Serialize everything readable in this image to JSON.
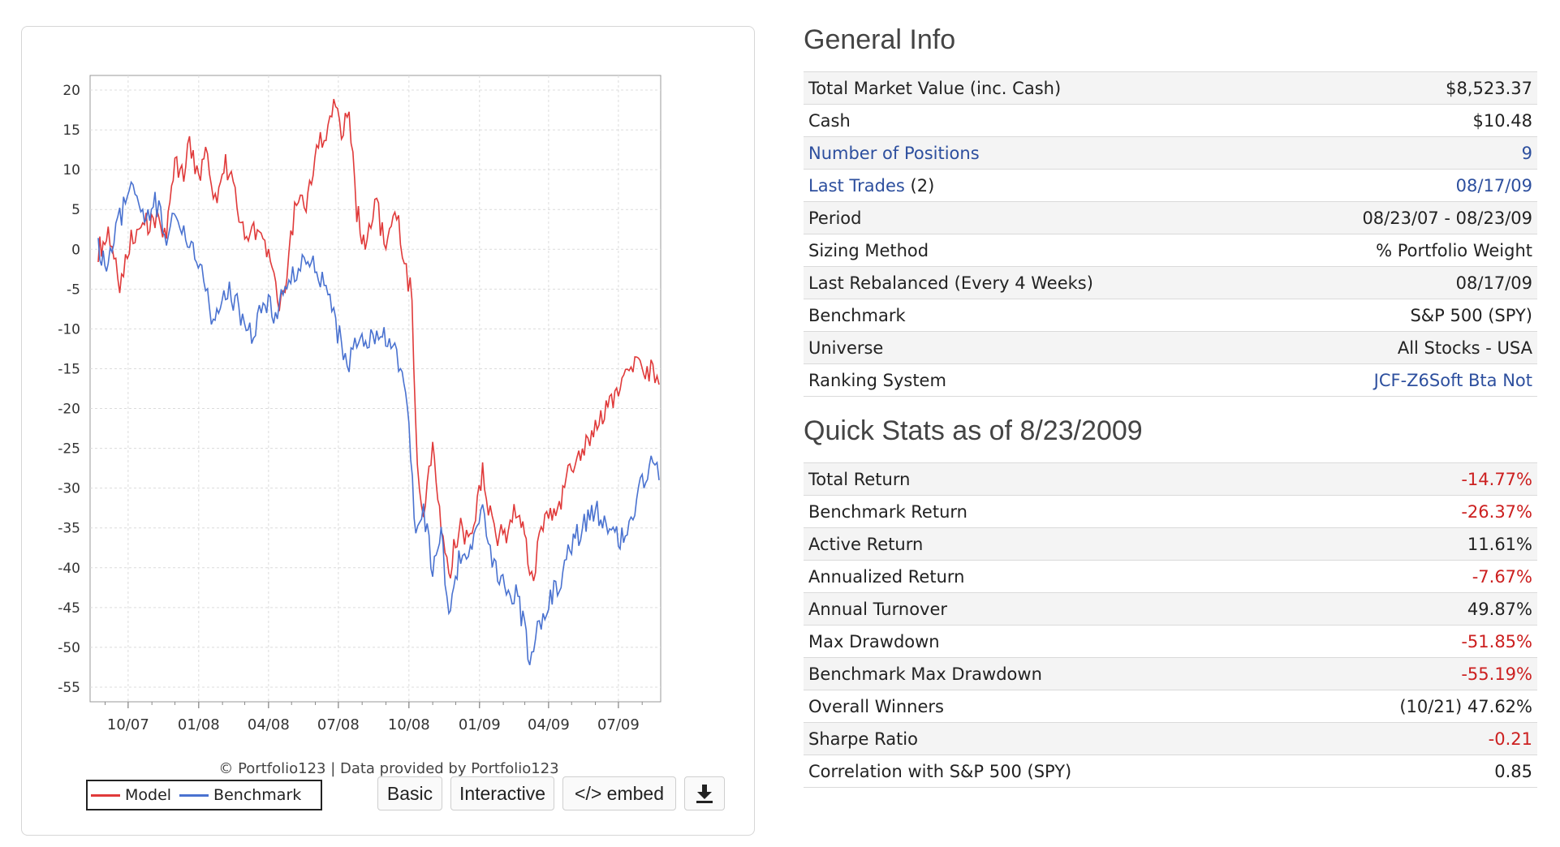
{
  "chart": {
    "copyright": "© Portfolio123 | Data provided by Portfolio123",
    "legend": [
      {
        "label": "Model",
        "color": "#e03a3a"
      },
      {
        "label": "Benchmark",
        "color": "#4a72d0"
      }
    ],
    "buttons": {
      "basic": "Basic",
      "interactive": "Interactive",
      "embed": "</> embed"
    },
    "download_icon": "download-icon"
  },
  "chart_data": {
    "type": "line",
    "x_ticks": [
      "10/07",
      "01/08",
      "04/08",
      "07/08",
      "10/08",
      "01/09",
      "04/09",
      "07/09"
    ],
    "y_ticks": [
      20,
      15,
      10,
      5,
      0,
      -5,
      -10,
      -15,
      -20,
      -25,
      -30,
      -35,
      -40,
      -45,
      -50,
      -55
    ],
    "ylim": [
      -55,
      20
    ],
    "x_range": [
      "2007-08-23",
      "2009-08-23"
    ],
    "grid": true,
    "legend_position": "bottom-left",
    "series": [
      {
        "name": "Model",
        "color": "#e03a3a",
        "points": [
          [
            "2007-08-23",
            0
          ],
          [
            "2007-09-05",
            1.5
          ],
          [
            "2007-09-20",
            -4.5
          ],
          [
            "2007-10-05",
            2
          ],
          [
            "2007-10-20",
            3
          ],
          [
            "2007-11-05",
            4
          ],
          [
            "2007-11-20",
            2
          ],
          [
            "2007-12-01",
            12
          ],
          [
            "2007-12-10",
            9
          ],
          [
            "2007-12-20",
            13
          ],
          [
            "2008-01-01",
            8
          ],
          [
            "2008-01-10",
            12
          ],
          [
            "2008-01-25",
            5
          ],
          [
            "2008-02-05",
            11
          ],
          [
            "2008-02-20",
            6
          ],
          [
            "2008-03-01",
            1
          ],
          [
            "2008-03-15",
            2
          ],
          [
            "2008-04-01",
            -1
          ],
          [
            "2008-04-15",
            -8
          ],
          [
            "2008-04-25",
            -3
          ],
          [
            "2008-05-05",
            5
          ],
          [
            "2008-05-20",
            6
          ],
          [
            "2008-06-05",
            14
          ],
          [
            "2008-06-15",
            13
          ],
          [
            "2008-06-25",
            19.5
          ],
          [
            "2008-07-05",
            15
          ],
          [
            "2008-07-15",
            17
          ],
          [
            "2008-07-25",
            5
          ],
          [
            "2008-08-05",
            0
          ],
          [
            "2008-08-20",
            6
          ],
          [
            "2008-09-01",
            -1
          ],
          [
            "2008-09-15",
            5
          ],
          [
            "2008-09-25",
            -2
          ],
          [
            "2008-10-05",
            -6
          ],
          [
            "2008-10-12",
            -28
          ],
          [
            "2008-10-20",
            -33
          ],
          [
            "2008-11-01",
            -25
          ],
          [
            "2008-11-12",
            -36
          ],
          [
            "2008-11-22",
            -41
          ],
          [
            "2008-12-05",
            -35
          ],
          [
            "2008-12-20",
            -36
          ],
          [
            "2009-01-05",
            -28
          ],
          [
            "2009-01-20",
            -36
          ],
          [
            "2009-02-05",
            -36
          ],
          [
            "2009-02-20",
            -32
          ],
          [
            "2009-03-05",
            -38
          ],
          [
            "2009-03-10",
            -42
          ],
          [
            "2009-03-20",
            -37
          ],
          [
            "2009-04-01",
            -33
          ],
          [
            "2009-04-15",
            -32
          ],
          [
            "2009-05-01",
            -27
          ],
          [
            "2009-05-15",
            -25
          ],
          [
            "2009-06-01",
            -22
          ],
          [
            "2009-06-15",
            -20
          ],
          [
            "2009-07-01",
            -18
          ],
          [
            "2009-07-15",
            -15.5
          ],
          [
            "2009-07-25",
            -13.5
          ],
          [
            "2009-08-05",
            -16
          ],
          [
            "2009-08-15",
            -15
          ],
          [
            "2009-08-23",
            -17
          ]
        ]
      },
      {
        "name": "Benchmark",
        "color": "#4a72d0",
        "points": [
          [
            "2007-08-23",
            0
          ],
          [
            "2007-09-05",
            -2
          ],
          [
            "2007-09-20",
            4
          ],
          [
            "2007-10-05",
            7
          ],
          [
            "2007-10-20",
            4
          ],
          [
            "2007-11-05",
            6
          ],
          [
            "2007-11-20",
            2
          ],
          [
            "2007-12-05",
            4
          ],
          [
            "2007-12-20",
            1
          ],
          [
            "2008-01-05",
            -3
          ],
          [
            "2008-01-20",
            -10
          ],
          [
            "2008-02-05",
            -5
          ],
          [
            "2008-02-20",
            -7
          ],
          [
            "2008-03-10",
            -11
          ],
          [
            "2008-03-25",
            -6
          ],
          [
            "2008-04-10",
            -8
          ],
          [
            "2008-04-25",
            -5
          ],
          [
            "2008-05-10",
            -2
          ],
          [
            "2008-05-20",
            -1
          ],
          [
            "2008-06-05",
            -3
          ],
          [
            "2008-06-20",
            -7
          ],
          [
            "2008-07-05",
            -12
          ],
          [
            "2008-07-15",
            -14
          ],
          [
            "2008-07-25",
            -11
          ],
          [
            "2008-08-10",
            -11
          ],
          [
            "2008-08-25",
            -10
          ],
          [
            "2008-09-10",
            -12
          ],
          [
            "2008-09-20",
            -15
          ],
          [
            "2008-10-01",
            -22
          ],
          [
            "2008-10-10",
            -36
          ],
          [
            "2008-10-20",
            -33
          ],
          [
            "2008-11-01",
            -40
          ],
          [
            "2008-11-12",
            -35
          ],
          [
            "2008-11-22",
            -47
          ],
          [
            "2008-12-05",
            -39
          ],
          [
            "2008-12-20",
            -38
          ],
          [
            "2009-01-05",
            -33
          ],
          [
            "2009-01-20",
            -40
          ],
          [
            "2009-02-05",
            -42
          ],
          [
            "2009-02-20",
            -44
          ],
          [
            "2009-03-05",
            -50
          ],
          [
            "2009-03-10",
            -52
          ],
          [
            "2009-03-20",
            -47
          ],
          [
            "2009-04-01",
            -44
          ],
          [
            "2009-04-15",
            -42
          ],
          [
            "2009-05-01",
            -37
          ],
          [
            "2009-05-15",
            -35
          ],
          [
            "2009-06-01",
            -33
          ],
          [
            "2009-06-15",
            -34
          ],
          [
            "2009-07-01",
            -36
          ],
          [
            "2009-07-10",
            -37
          ],
          [
            "2009-07-20",
            -33
          ],
          [
            "2009-08-01",
            -29
          ],
          [
            "2009-08-15",
            -27
          ],
          [
            "2009-08-23",
            -29
          ]
        ]
      }
    ]
  },
  "general_info": {
    "title": "General Info",
    "rows": [
      {
        "label": "Total Market Value (inc. Cash)",
        "value": "$8,523.37"
      },
      {
        "label": "Cash",
        "value": "$10.48"
      },
      {
        "label": "Number of Positions",
        "value": "9",
        "link": true
      },
      {
        "label": "Last Trades",
        "label_suffix": " (2)",
        "value": "08/17/09",
        "link": true
      },
      {
        "label": "Period",
        "value": "08/23/07 - 08/23/09"
      },
      {
        "label": "Sizing Method",
        "value": "% Portfolio Weight"
      },
      {
        "label": "Last Rebalanced (Every 4 Weeks)",
        "value": "08/17/09"
      },
      {
        "label": "Benchmark",
        "value": "S&P 500 (SPY)"
      },
      {
        "label": "Universe",
        "value": "All Stocks - USA"
      },
      {
        "label": "Ranking System",
        "value": "JCF-Z6Soft Bta Not",
        "value_link": true
      }
    ]
  },
  "quick_stats": {
    "title": "Quick Stats as of 8/23/2009",
    "rows": [
      {
        "label": "Total Return",
        "value": "-14.77%",
        "negative": true
      },
      {
        "label": "Benchmark Return",
        "value": "-26.37%",
        "negative": true
      },
      {
        "label": "Active Return",
        "value": "11.61%"
      },
      {
        "label": "Annualized Return",
        "value": "-7.67%",
        "negative": true
      },
      {
        "label": "Annual Turnover",
        "value": "49.87%"
      },
      {
        "label": "Max Drawdown",
        "value": "-51.85%",
        "negative": true
      },
      {
        "label": "Benchmark Max Drawdown",
        "value": "-55.19%",
        "negative": true
      },
      {
        "label": "Overall Winners",
        "value": "(10/21) 47.62%"
      },
      {
        "label": "Sharpe Ratio",
        "value": "-0.21",
        "negative": true
      },
      {
        "label": "Correlation with S&P 500 (SPY)",
        "value": "0.85"
      }
    ]
  }
}
